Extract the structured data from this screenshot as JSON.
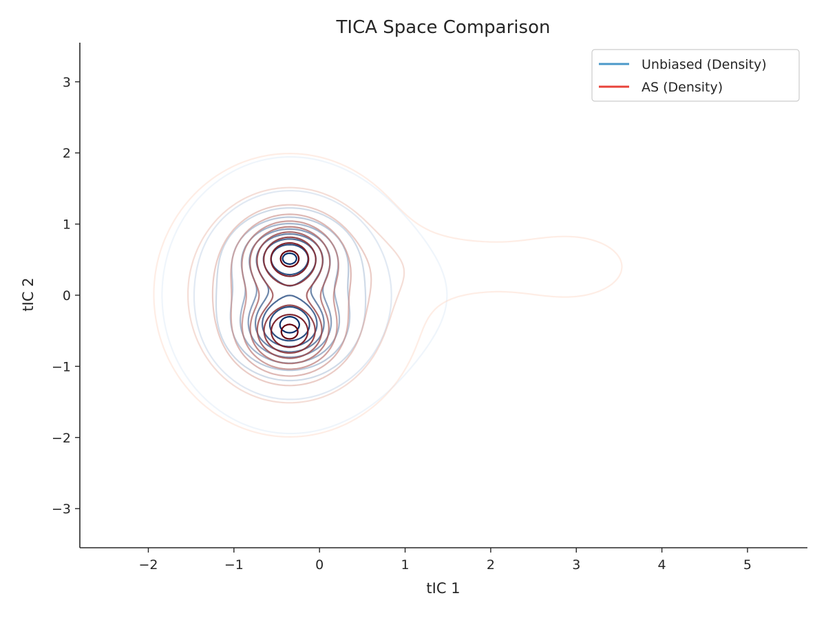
{
  "chart_data": {
    "type": "contour",
    "title": "TICA Space Comparison",
    "xlabel": "tIC 1",
    "ylabel": "tIC 2",
    "xlim": [
      -2.8,
      5.7
    ],
    "ylim": [
      -3.55,
      3.55
    ],
    "xticks": [
      -2,
      -1,
      0,
      1,
      2,
      3,
      4,
      5
    ],
    "yticks": [
      -3,
      -2,
      -1,
      0,
      1,
      2,
      3
    ],
    "xtick_labels": [
      "−2",
      "−1",
      "0",
      "1",
      "2",
      "3",
      "4",
      "5"
    ],
    "ytick_labels": [
      "−3",
      "−2",
      "−1",
      "0",
      "1",
      "2",
      "3"
    ],
    "grid": false,
    "legend_position": "top-right",
    "series": [
      {
        "name": "Unbiased (Density)",
        "color": "#4a98c9",
        "colormap": "Blues",
        "levels": 10,
        "modes": [
          {
            "center": [
              -0.35,
              0.55
            ],
            "sigma": [
              0.32,
              0.28
            ]
          },
          {
            "center": [
              -0.35,
              -0.45
            ],
            "sigma": [
              0.32,
              0.3
            ]
          }
        ],
        "outer_extent": {
          "x": [
            -2.0,
            1.8
          ],
          "y": [
            -2.2,
            2.1
          ]
        }
      },
      {
        "name": "AS (Density)",
        "color": "#e8433a",
        "colormap": "Reds",
        "levels": 10,
        "modes": [
          {
            "center": [
              -0.35,
              0.55
            ],
            "sigma": [
              0.3,
              0.3
            ]
          },
          {
            "center": [
              -0.35,
              -0.55
            ],
            "sigma": [
              0.3,
              0.3
            ]
          }
        ],
        "outer_extent": {
          "x": [
            -2.1,
            3.7
          ],
          "y": [
            -2.2,
            2.2
          ]
        },
        "tail": {
          "center": [
            3.0,
            0.4
          ],
          "direction": "+x"
        }
      }
    ]
  }
}
